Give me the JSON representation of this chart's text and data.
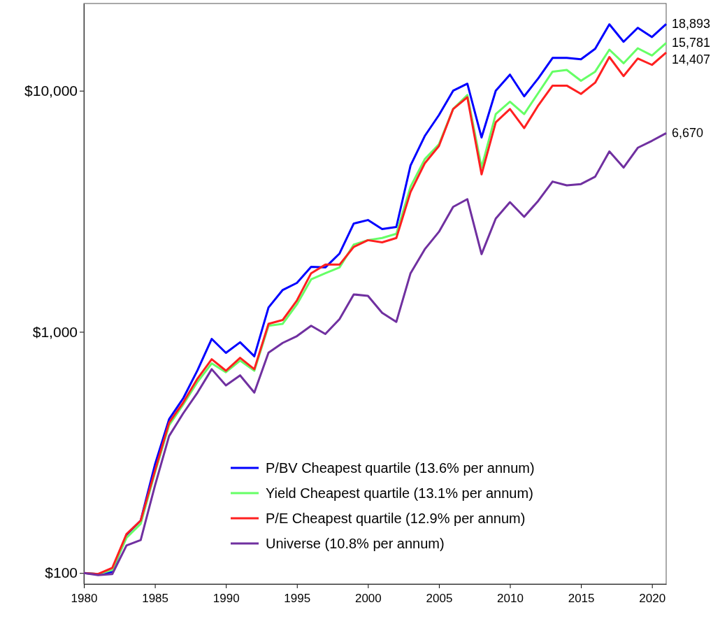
{
  "chart_data": {
    "type": "line",
    "x": [
      1980,
      1981,
      1982,
      1983,
      1984,
      1985,
      1986,
      1987,
      1988,
      1989,
      1990,
      1991,
      1992,
      1993,
      1994,
      1995,
      1996,
      1997,
      1998,
      1999,
      2000,
      2001,
      2002,
      2003,
      2004,
      2005,
      2006,
      2007,
      2008,
      2009,
      2010,
      2011,
      2012,
      2013,
      2014,
      2015,
      2016,
      2017,
      2018,
      2019,
      2020,
      2021
    ],
    "series": [
      {
        "name": "P/BV Cheapest quartile (13.6% per annum)",
        "color": "#0000ff",
        "values": [
          100,
          99,
          101,
          144,
          165,
          281,
          434,
          531,
          693,
          935,
          818,
          905,
          792,
          1262,
          1492,
          1596,
          1862,
          1850,
          2113,
          2813,
          2909,
          2668,
          2722,
          4898,
          6486,
          7925,
          10000,
          10690,
          6400,
          10000,
          11660,
          9480,
          11270,
          13680,
          13680,
          13500,
          14930,
          18850,
          15960,
          18240,
          16700,
          18893
        ],
        "value_labels": [
          null,
          null,
          null,
          null,
          null,
          null,
          null,
          null,
          null,
          null,
          null,
          null,
          null,
          null,
          null,
          null,
          null,
          null,
          null,
          null,
          null,
          null,
          null,
          null,
          null,
          null,
          null,
          null,
          null,
          null,
          null,
          null,
          null,
          null,
          null,
          null,
          null,
          null,
          null,
          null,
          null,
          "18,893"
        ]
      },
      {
        "name": "Yield Cheapest quartile (13.1% per annum)",
        "color": "#66ff66",
        "values": [
          100,
          99,
          103,
          140,
          160,
          260,
          410,
          500,
          620,
          740,
          680,
          760,
          690,
          1060,
          1080,
          1300,
          1650,
          1750,
          1850,
          2300,
          2400,
          2450,
          2550,
          4000,
          5200,
          6000,
          8400,
          9600,
          4800,
          8000,
          9000,
          8000,
          9800,
          12000,
          12200,
          11000,
          12000,
          14800,
          13000,
          15000,
          14000,
          15781
        ],
        "value_labels": [
          null,
          null,
          null,
          null,
          null,
          null,
          null,
          null,
          null,
          null,
          null,
          null,
          null,
          null,
          null,
          null,
          null,
          null,
          null,
          null,
          null,
          null,
          null,
          null,
          null,
          null,
          null,
          null,
          null,
          null,
          null,
          null,
          null,
          null,
          null,
          null,
          null,
          null,
          null,
          null,
          null,
          "15,781"
        ]
      },
      {
        "name": "P/E Cheapest quartile (12.9% per annum)",
        "color": "#ff2020",
        "values": [
          100,
          99,
          105,
          145,
          165,
          265,
          420,
          510,
          640,
          770,
          690,
          780,
          700,
          1080,
          1120,
          1350,
          1750,
          1900,
          1900,
          2250,
          2400,
          2350,
          2450,
          3800,
          5000,
          5900,
          8400,
          9400,
          4500,
          7400,
          8400,
          7000,
          8700,
          10500,
          10500,
          9700,
          10800,
          13800,
          11500,
          13600,
          12800,
          14407
        ],
        "value_labels": [
          null,
          null,
          null,
          null,
          null,
          null,
          null,
          null,
          null,
          null,
          null,
          null,
          null,
          null,
          null,
          null,
          null,
          null,
          null,
          null,
          null,
          null,
          null,
          null,
          null,
          null,
          null,
          null,
          null,
          null,
          null,
          null,
          null,
          null,
          null,
          null,
          null,
          null,
          null,
          null,
          null,
          "14,407"
        ]
      },
      {
        "name": "Universe (10.8% per annum)",
        "color": "#7030a0",
        "values": [
          100,
          98,
          99,
          130,
          137,
          230,
          370,
          460,
          560,
          700,
          600,
          660,
          560,
          820,
          900,
          960,
          1060,
          980,
          1130,
          1430,
          1410,
          1200,
          1100,
          1750,
          2200,
          2600,
          3300,
          3550,
          2100,
          2950,
          3450,
          3000,
          3500,
          4200,
          4050,
          4100,
          4400,
          5600,
          4800,
          5800,
          6200,
          6670
        ],
        "value_labels": [
          null,
          null,
          null,
          null,
          null,
          null,
          null,
          null,
          null,
          null,
          null,
          null,
          null,
          null,
          null,
          null,
          null,
          null,
          null,
          null,
          null,
          null,
          null,
          null,
          null,
          null,
          null,
          null,
          null,
          null,
          null,
          null,
          null,
          null,
          null,
          null,
          null,
          null,
          null,
          null,
          null,
          "6,670"
        ]
      }
    ],
    "log": true,
    "xlim": [
      1980,
      2021
    ],
    "xticks": [
      1980,
      1985,
      1990,
      1995,
      2000,
      2005,
      2010,
      2015,
      2020
    ],
    "ylim": [
      90,
      23000
    ],
    "yticks": [
      {
        "value": 100,
        "label": "$100"
      },
      {
        "value": 1000,
        "label": "$1,000"
      },
      {
        "value": 10000,
        "label": "$10,000"
      }
    ],
    "legend": "bottom right",
    "grid": false,
    "line_style": "solid",
    "marker": "none"
  }
}
